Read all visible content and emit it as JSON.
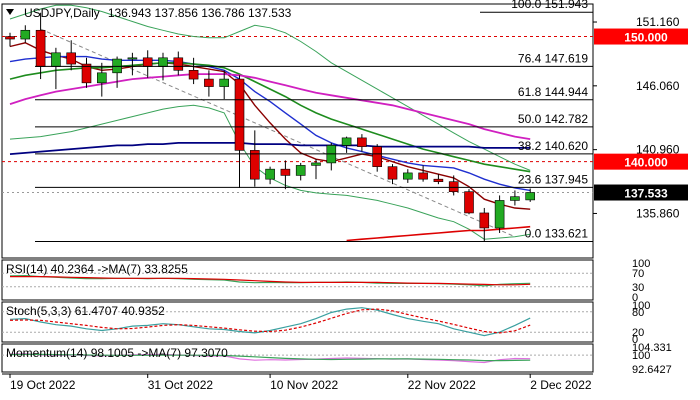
{
  "chart_data": {
    "type": "candlestick",
    "symbol": "USDJPY",
    "timeframe": "Daily",
    "title": "USDJPY,Daily",
    "ohlc_text": "136.943 137.856 136.786 137.533",
    "colors": {
      "bull": "#22aa22",
      "bear": "#dd0000",
      "wick": "#000000",
      "ma_fast": "#8b0000",
      "ma_blue": "#1f2fd0",
      "ma_green": "#1e8c1e",
      "ma_magenta": "#d020c0",
      "ma_navy": "#000080",
      "ma_red_long": "#dd0000",
      "bollinger": "#3aa35a",
      "level_line": "#000000",
      "red_dashed": "#dd0000",
      "current_label_bg": "#000000",
      "red_label_bg": "#ff0000",
      "pink": "#e070e0"
    },
    "y_axis": {
      "min": 132.3,
      "max": 152.6,
      "ticks": [
        {
          "value": 151.16,
          "label": "151.160"
        },
        {
          "value": 146.06,
          "label": "146.060"
        },
        {
          "value": 140.96,
          "label": "140.960"
        },
        {
          "value": 135.86,
          "label": "135.860"
        }
      ]
    },
    "price_tags": [
      {
        "value": 150.0,
        "label": "150.000",
        "style": "red"
      },
      {
        "value": 140.0,
        "label": "140.000",
        "style": "red"
      },
      {
        "value": 137.533,
        "label": "137.533",
        "style": "black"
      }
    ],
    "fib_levels": [
      {
        "value": 151.943,
        "label": "100.0 151.943"
      },
      {
        "value": 147.619,
        "label": "76.4 147.619"
      },
      {
        "value": 144.944,
        "label": "61.8 144.944"
      },
      {
        "value": 142.782,
        "label": "50.0 142.782"
      },
      {
        "value": 140.62,
        "label": "38.2 140.620"
      },
      {
        "value": 137.945,
        "label": "23.6 137.945"
      },
      {
        "value": 133.621,
        "label": "0.0 133.621"
      }
    ],
    "x_labels": [
      {
        "index": 0,
        "label": "19 Oct 2022"
      },
      {
        "index": 9,
        "label": "31 Oct 2022"
      },
      {
        "index": 17,
        "label": "10 Nov 2022"
      },
      {
        "index": 26,
        "label": "22 Nov 2022"
      },
      {
        "index": 34,
        "label": "2 Dec 2022"
      }
    ],
    "candles": [
      {
        "o": 150.0,
        "h": 150.3,
        "l": 149.2,
        "c": 149.8
      },
      {
        "o": 149.8,
        "h": 150.9,
        "l": 149.5,
        "c": 150.5
      },
      {
        "o": 150.5,
        "h": 151.9,
        "l": 146.6,
        "c": 147.6
      },
      {
        "o": 147.6,
        "h": 149.1,
        "l": 145.8,
        "c": 148.7
      },
      {
        "o": 148.7,
        "h": 149.7,
        "l": 147.3,
        "c": 147.8
      },
      {
        "o": 147.8,
        "h": 148.3,
        "l": 145.9,
        "c": 146.3
      },
      {
        "o": 146.3,
        "h": 147.9,
        "l": 145.2,
        "c": 147.1
      },
      {
        "o": 147.1,
        "h": 148.4,
        "l": 145.9,
        "c": 148.2
      },
      {
        "o": 148.2,
        "h": 148.7,
        "l": 146.9,
        "c": 148.3
      },
      {
        "o": 148.3,
        "h": 148.9,
        "l": 146.7,
        "c": 147.6
      },
      {
        "o": 147.6,
        "h": 148.7,
        "l": 146.5,
        "c": 148.3
      },
      {
        "o": 148.3,
        "h": 148.8,
        "l": 146.9,
        "c": 147.3
      },
      {
        "o": 147.3,
        "h": 148.3,
        "l": 146.2,
        "c": 146.6
      },
      {
        "o": 146.6,
        "h": 147.3,
        "l": 145.2,
        "c": 146.0
      },
      {
        "o": 146.0,
        "h": 147.3,
        "l": 145.0,
        "c": 146.6
      },
      {
        "o": 146.6,
        "h": 146.9,
        "l": 137.9,
        "c": 140.9
      },
      {
        "o": 140.9,
        "h": 142.5,
        "l": 138.0,
        "c": 138.6
      },
      {
        "o": 138.6,
        "h": 139.6,
        "l": 138.2,
        "c": 139.4
      },
      {
        "o": 139.4,
        "h": 140.1,
        "l": 137.8,
        "c": 138.9
      },
      {
        "o": 138.9,
        "h": 139.9,
        "l": 138.5,
        "c": 139.7
      },
      {
        "o": 139.7,
        "h": 140.2,
        "l": 138.6,
        "c": 139.9
      },
      {
        "o": 139.9,
        "h": 141.5,
        "l": 139.3,
        "c": 141.3
      },
      {
        "o": 141.3,
        "h": 142.0,
        "l": 140.7,
        "c": 141.9
      },
      {
        "o": 141.9,
        "h": 142.2,
        "l": 140.8,
        "c": 141.2
      },
      {
        "o": 141.2,
        "h": 141.4,
        "l": 139.2,
        "c": 139.6
      },
      {
        "o": 139.6,
        "h": 139.8,
        "l": 138.2,
        "c": 138.6
      },
      {
        "o": 138.6,
        "h": 139.4,
        "l": 138.3,
        "c": 139.1
      },
      {
        "o": 139.1,
        "h": 139.7,
        "l": 138.4,
        "c": 138.6
      },
      {
        "o": 138.6,
        "h": 139.0,
        "l": 138.2,
        "c": 138.4
      },
      {
        "o": 138.4,
        "h": 138.9,
        "l": 137.3,
        "c": 137.6
      },
      {
        "o": 137.6,
        "h": 137.8,
        "l": 135.8,
        "c": 135.9
      },
      {
        "o": 135.9,
        "h": 136.3,
        "l": 133.6,
        "c": 134.7
      },
      {
        "o": 134.7,
        "h": 137.3,
        "l": 134.3,
        "c": 136.9
      },
      {
        "o": 136.9,
        "h": 137.7,
        "l": 136.5,
        "c": 137.2
      },
      {
        "o": 136.943,
        "h": 137.856,
        "l": 136.786,
        "c": 137.533
      }
    ],
    "moving_averages": [
      {
        "color": "ma_fast",
        "values": [
          149.2,
          149.5,
          148.9,
          148.5,
          148.2,
          147.6,
          147.3,
          147.4,
          147.6,
          147.8,
          147.9,
          147.8,
          147.6,
          147.4,
          147.2,
          146.2,
          144.5,
          143.1,
          141.8,
          140.7,
          140.2,
          140.0,
          140.3,
          140.6,
          140.4,
          140.0,
          139.6,
          139.3,
          139.0,
          138.7,
          138.0,
          137.0,
          136.6,
          136.3,
          136.2
        ]
      },
      {
        "color": "ma_blue",
        "values": [
          148.0,
          148.2,
          148.3,
          148.4,
          148.4,
          148.4,
          148.2,
          148.1,
          148.1,
          148.1,
          148.1,
          148.0,
          147.8,
          147.6,
          147.3,
          146.6,
          145.6,
          144.8,
          143.9,
          143.0,
          142.1,
          141.5,
          141.1,
          140.8,
          140.5,
          140.2,
          139.9,
          139.7,
          139.6,
          139.5,
          139.1,
          138.6,
          138.2,
          137.9,
          137.7
        ]
      },
      {
        "color": "ma_green",
        "values": [
          146.6,
          146.9,
          147.1,
          147.3,
          147.4,
          147.5,
          147.5,
          147.6,
          147.7,
          147.8,
          147.9,
          147.9,
          147.8,
          147.7,
          147.5,
          147.0,
          146.4,
          145.8,
          145.2,
          144.5,
          143.9,
          143.4,
          143.0,
          142.6,
          142.2,
          141.8,
          141.4,
          141.0,
          140.7,
          140.4,
          140.1,
          139.8,
          139.6,
          139.4,
          139.2
        ]
      },
      {
        "color": "ma_magenta",
        "values": [
          144.6,
          145.0,
          145.3,
          145.6,
          145.8,
          146.0,
          146.2,
          146.4,
          146.6,
          146.7,
          146.8,
          146.9,
          147.0,
          147.0,
          147.0,
          146.9,
          146.7,
          146.4,
          146.1,
          145.8,
          145.5,
          145.3,
          145.1,
          144.9,
          144.7,
          144.5,
          144.2,
          143.9,
          143.6,
          143.3,
          143.0,
          142.6,
          142.3,
          142.0,
          141.8
        ]
      },
      {
        "color": "ma_navy",
        "values": [
          140.6,
          140.7,
          140.8,
          140.9,
          141.0,
          141.1,
          141.2,
          141.3,
          141.3,
          141.4,
          141.4,
          141.5,
          141.5,
          141.5,
          141.5,
          141.5,
          141.4,
          141.4,
          141.4,
          141.3,
          141.3,
          141.3,
          141.3,
          141.3,
          141.2,
          141.2,
          141.2,
          141.2,
          141.2,
          141.2,
          141.2,
          141.1,
          141.1,
          141.1,
          141.1
        ]
      },
      {
        "color": "ma_red_long",
        "values": [
          null,
          null,
          null,
          null,
          null,
          null,
          null,
          null,
          null,
          null,
          null,
          null,
          null,
          null,
          null,
          null,
          null,
          null,
          null,
          null,
          null,
          null,
          133.7,
          133.8,
          133.9,
          134.0,
          134.1,
          134.2,
          134.3,
          134.4,
          134.5,
          134.5,
          134.6,
          134.7,
          134.8
        ]
      }
    ],
    "bollinger_upper": [
      151.4,
      151.8,
      152.2,
      152.5,
      152.5,
      152.3,
      152.0,
      151.6,
      151.2,
      150.8,
      150.5,
      150.2,
      150.0,
      149.9,
      149.9,
      150.4,
      150.9,
      150.7,
      150.3,
      149.6,
      148.8,
      147.9,
      147.2,
      146.5,
      145.8,
      145.1,
      144.4,
      143.7,
      143.0,
      142.3,
      141.6,
      141.0,
      140.4,
      139.8,
      139.3
    ],
    "bollinger_lower": [
      141.8,
      141.9,
      142.0,
      142.2,
      142.4,
      142.7,
      143.0,
      143.3,
      143.6,
      143.9,
      144.2,
      144.4,
      144.5,
      144.3,
      143.9,
      141.5,
      139.6,
      138.7,
      138.1,
      137.7,
      137.5,
      137.4,
      137.3,
      137.1,
      136.9,
      136.6,
      136.3,
      135.9,
      135.5,
      135.2,
      134.6,
      133.8,
      133.9,
      134.0,
      134.2
    ],
    "dashed_trendline": [
      {
        "index": 2,
        "value": 150.6
      },
      {
        "index": 33,
        "value": 134.0
      }
    ],
    "indicators": [
      {
        "label": "RSI(14) 40.2364  ->MA(7) 33.8255",
        "ticks": [
          {
            "value": 100,
            "label": "100"
          },
          {
            "value": 70,
            "label": "70"
          },
          {
            "value": 30,
            "label": "30"
          },
          {
            "value": 0,
            "label": "0"
          }
        ],
        "range": [
          0,
          100
        ],
        "line1": [
          62,
          63,
          60,
          58,
          56,
          54,
          54,
          55,
          55,
          54,
          55,
          54,
          52,
          51,
          50,
          44,
          42,
          43,
          42,
          42,
          43,
          43,
          44,
          43,
          41,
          40,
          40,
          40,
          39,
          38,
          36,
          33,
          37,
          39,
          40.2
        ],
        "line2": [
          60,
          60,
          60,
          59,
          58,
          57,
          56,
          55,
          55,
          55,
          55,
          55,
          54,
          53,
          52,
          50,
          48,
          46,
          44,
          43,
          43,
          43,
          43,
          43,
          43,
          42,
          41,
          40,
          40,
          39,
          38,
          37,
          36,
          36,
          37.5
        ]
      },
      {
        "label": "Stoch(5,3,3) 61.4707 40.9352",
        "ticks": [
          {
            "value": 100,
            "label": "100"
          },
          {
            "value": 80,
            "label": "80"
          },
          {
            "value": 20,
            "label": "20"
          },
          {
            "value": 0,
            "label": "0"
          }
        ],
        "range": [
          0,
          100
        ],
        "line1": [
          58,
          60,
          50,
          42,
          38,
          30,
          25,
          30,
          38,
          40,
          45,
          42,
          36,
          30,
          28,
          22,
          18,
          25,
          35,
          45,
          60,
          78,
          88,
          92,
          85,
          72,
          60,
          52,
          45,
          30,
          20,
          10,
          20,
          40,
          61.5
        ],
        "line2": [
          55,
          56,
          55,
          50,
          45,
          40,
          34,
          30,
          31,
          35,
          40,
          42,
          40,
          36,
          32,
          27,
          23,
          22,
          26,
          35,
          47,
          61,
          75,
          86,
          88,
          83,
          72,
          62,
          53,
          43,
          32,
          22,
          18,
          24,
          40.9
        ]
      },
      {
        "label": "Momentum(14) 98.1005  ->MA(7) 97.3070",
        "ticks": [
          {
            "value": 104.331,
            "label": "104.331"
          },
          {
            "value": 100,
            "label": "100"
          },
          {
            "value": 92.6427,
            "label": "92.6427"
          }
        ],
        "range": [
          92.6427,
          104.331
        ],
        "line1": [
          100.5,
          100.8,
          100.2,
          99.9,
          100.1,
          99.8,
          99.6,
          99.9,
          100.2,
          100.3,
          100.4,
          100.1,
          99.8,
          99.5,
          99.6,
          98.0,
          97.3,
          97.6,
          97.4,
          97.7,
          97.9,
          98.2,
          98.5,
          98.3,
          98.1,
          97.9,
          98.0,
          97.7,
          97.4,
          97.1,
          96.6,
          96.1,
          97.6,
          98.2,
          98.1
        ],
        "line2": [
          100.3,
          100.4,
          100.4,
          100.3,
          100.2,
          100.1,
          100.0,
          99.9,
          99.9,
          99.9,
          100.0,
          100.0,
          100.0,
          99.9,
          99.8,
          99.5,
          99.1,
          98.7,
          98.3,
          98.0,
          97.8,
          97.7,
          97.8,
          97.9,
          98.0,
          98.0,
          98.0,
          97.9,
          97.8,
          97.6,
          97.4,
          97.1,
          97.1,
          97.2,
          97.3
        ]
      }
    ]
  }
}
